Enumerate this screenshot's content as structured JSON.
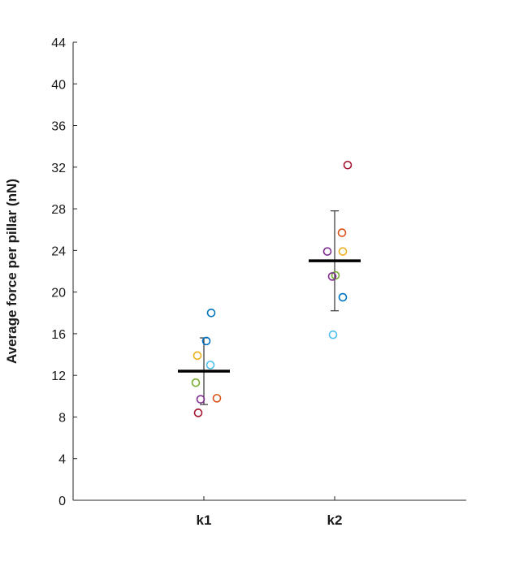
{
  "chart_data": {
    "type": "scatter",
    "title": "",
    "xlabel": "",
    "ylabel": "Average force per pillar (nN)",
    "ylim": [
      0,
      44
    ],
    "yticks": [
      0,
      4,
      8,
      12,
      16,
      20,
      24,
      28,
      32,
      36,
      40,
      44
    ],
    "categories": [
      "k1",
      "k2"
    ],
    "grid": false,
    "legend": "none",
    "points": [
      {
        "category": "k1",
        "value": 18.0,
        "color": "#0072BD"
      },
      {
        "category": "k1",
        "value": 15.3,
        "color": "#0072BD"
      },
      {
        "category": "k1",
        "value": 13.9,
        "color": "#EDB120"
      },
      {
        "category": "k1",
        "value": 13.0,
        "color": "#4DBEEE"
      },
      {
        "category": "k1",
        "value": 11.3,
        "color": "#77AC30"
      },
      {
        "category": "k1",
        "value": 9.8,
        "color": "#D95319"
      },
      {
        "category": "k1",
        "value": 9.7,
        "color": "#7E2F8E"
      },
      {
        "category": "k1",
        "value": 8.4,
        "color": "#A2142F"
      },
      {
        "category": "k2",
        "value": 32.2,
        "color": "#A2142F"
      },
      {
        "category": "k2",
        "value": 25.7,
        "color": "#D95319"
      },
      {
        "category": "k2",
        "value": 23.9,
        "color": "#7E2F8E"
      },
      {
        "category": "k2",
        "value": 23.9,
        "color": "#EDB120"
      },
      {
        "category": "k2",
        "value": 21.6,
        "color": "#77AC30"
      },
      {
        "category": "k2",
        "value": 21.5,
        "color": "#7E2F8E"
      },
      {
        "category": "k2",
        "value": 19.5,
        "color": "#0072BD"
      },
      {
        "category": "k2",
        "value": 15.9,
        "color": "#4DBEEE"
      }
    ],
    "summary": [
      {
        "category": "k1",
        "mean": 12.4,
        "error_low": 9.2,
        "error_high": 15.6
      },
      {
        "category": "k2",
        "mean": 23.0,
        "error_low": 18.2,
        "error_high": 27.8
      }
    ]
  }
}
